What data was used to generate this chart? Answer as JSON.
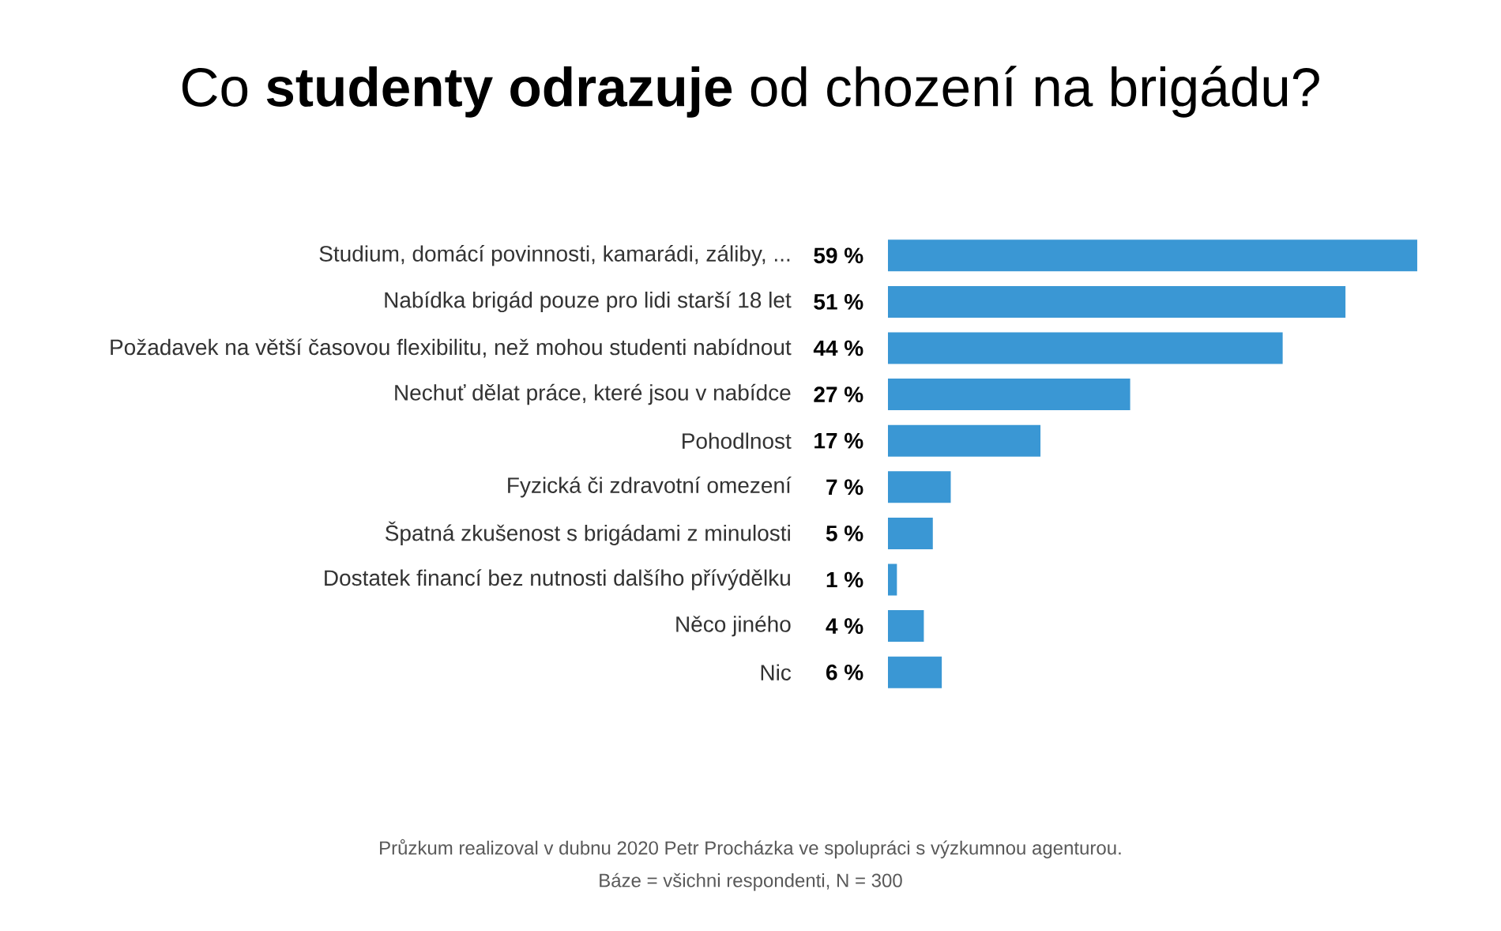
{
  "chart_data": {
    "type": "bar",
    "orientation": "horizontal",
    "title": "Co **studenty odrazuje** od chození na brigádu?",
    "categories": [
      "Studium, domácí povinnosti, kamarádi, záliby, ...",
      "Nabídka brigád pouze pro lidi starší 18 let",
      "Požadavek na větší časovou flexibilitu, než mohou studenti nabídnout",
      "Nechuť dělat práce, které jsou v nabídce",
      "Pohodlnost",
      "Fyzická či zdravotní omezení",
      "Špatná zkušenost s brigádami z minulosti",
      "Dostatek financí bez nutnosti dalšího přívýdělku",
      "Něco jiného",
      "Nic"
    ],
    "values": [
      59,
      51,
      44,
      27,
      17,
      7,
      5,
      1,
      4,
      6
    ],
    "value_labels": [
      "59 %",
      "51 %",
      "44 %",
      "27 %",
      "17 %",
      "7 %",
      "5 %",
      "1 %",
      "4 %",
      "6 %"
    ],
    "color": "#3a97d4",
    "annotations": [
      "Průzkum realizoval v dubnu 2020 Petr Procházka ve spolupráci s výzkumnou agenturou.",
      "Báze = všichni respondenti, N = 300"
    ]
  }
}
